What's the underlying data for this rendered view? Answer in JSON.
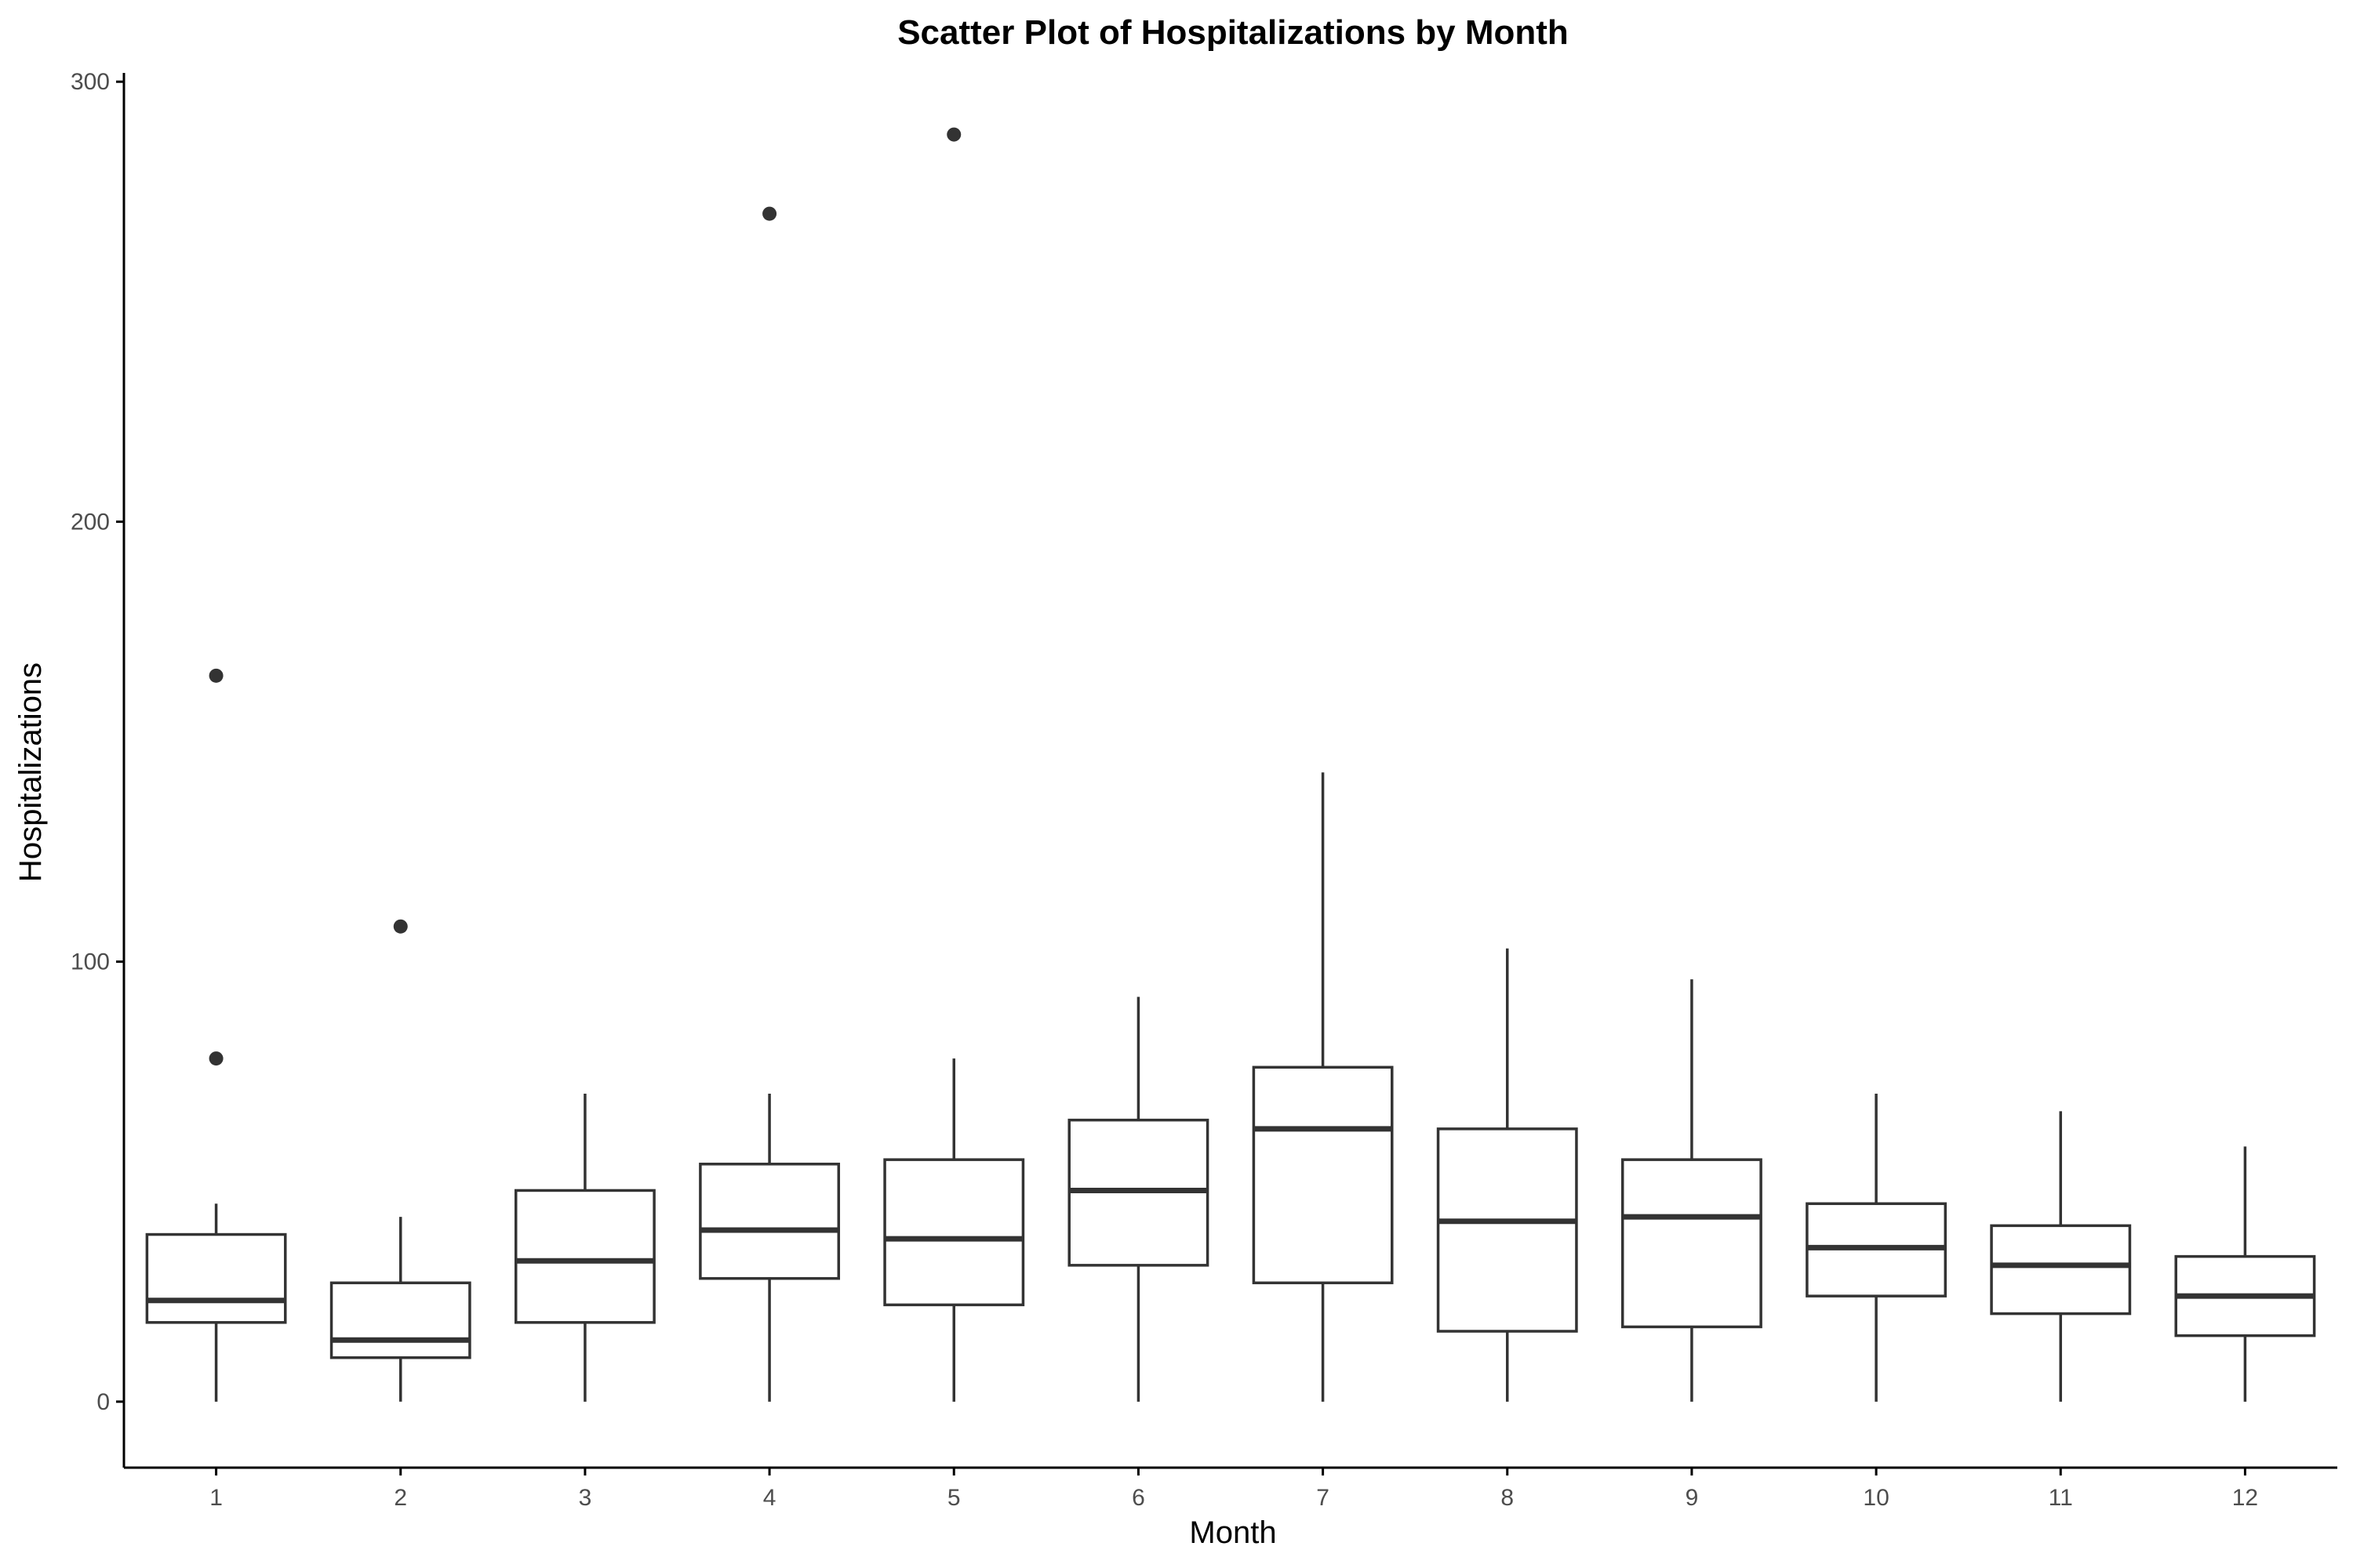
{
  "chart_data": {
    "type": "box",
    "title": "Scatter Plot of Hospitalizations by Month",
    "xlabel": "Month",
    "ylabel": "Hospitalizations",
    "categories": [
      "1",
      "2",
      "3",
      "4",
      "5",
      "6",
      "7",
      "8",
      "9",
      "10",
      "11",
      "12"
    ],
    "y_ticks": [
      0,
      100,
      200,
      300
    ],
    "ylim": [
      -15,
      302
    ],
    "grid": false,
    "boxes": [
      {
        "min": 0,
        "q1": 18,
        "median": 23,
        "q3": 38,
        "max": 45,
        "outliers": [
          78,
          165
        ]
      },
      {
        "min": 0,
        "q1": 10,
        "median": 14,
        "q3": 27,
        "max": 42,
        "outliers": [
          108
        ]
      },
      {
        "min": 0,
        "q1": 18,
        "median": 32,
        "q3": 48,
        "max": 70,
        "outliers": []
      },
      {
        "min": 0,
        "q1": 28,
        "median": 39,
        "q3": 54,
        "max": 70,
        "outliers": [
          270
        ]
      },
      {
        "min": 0,
        "q1": 22,
        "median": 37,
        "q3": 55,
        "max": 78,
        "outliers": [
          288
        ]
      },
      {
        "min": 0,
        "q1": 31,
        "median": 48,
        "q3": 64,
        "max": 92,
        "outliers": []
      },
      {
        "min": 0,
        "q1": 27,
        "median": 62,
        "q3": 76,
        "max": 143,
        "outliers": []
      },
      {
        "min": 0,
        "q1": 16,
        "median": 41,
        "q3": 62,
        "max": 103,
        "outliers": []
      },
      {
        "min": 0,
        "q1": 17,
        "median": 42,
        "q3": 55,
        "max": 96,
        "outliers": []
      },
      {
        "min": 0,
        "q1": 24,
        "median": 35,
        "q3": 45,
        "max": 70,
        "outliers": []
      },
      {
        "min": 0,
        "q1": 20,
        "median": 31,
        "q3": 40,
        "max": 66,
        "outliers": []
      },
      {
        "min": 0,
        "q1": 15,
        "median": 24,
        "q3": 33,
        "max": 58,
        "outliers": []
      }
    ],
    "colors": {
      "box_line": "#333333",
      "axis": "#000000",
      "tick_text": "#4d4d4d",
      "outlier": "#333333"
    }
  }
}
